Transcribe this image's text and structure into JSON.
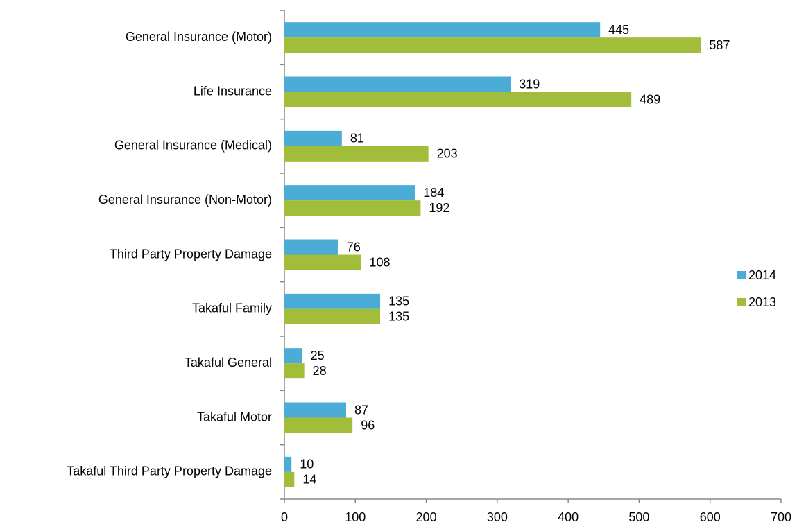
{
  "chart_data": {
    "type": "bar",
    "orientation": "horizontal",
    "categories": [
      "General Insurance (Motor)",
      "Life Insurance",
      "General Insurance (Medical)",
      "General Insurance (Non-Motor)",
      "Third Party Property Damage",
      "Takaful Family",
      "Takaful General",
      "Takaful Motor",
      "Takaful Third Party Property Damage"
    ],
    "series": [
      {
        "name": "2014",
        "color": "#4bacd6",
        "values": [
          445,
          319,
          81,
          184,
          76,
          135,
          25,
          87,
          10
        ]
      },
      {
        "name": "2013",
        "color": "#a2bd3a",
        "values": [
          587,
          489,
          203,
          192,
          108,
          135,
          28,
          96,
          14
        ]
      }
    ],
    "xlim": [
      0,
      700
    ],
    "xticks": [
      0,
      100,
      200,
      300,
      400,
      500,
      600,
      700
    ],
    "grid": false,
    "legend": "right"
  }
}
